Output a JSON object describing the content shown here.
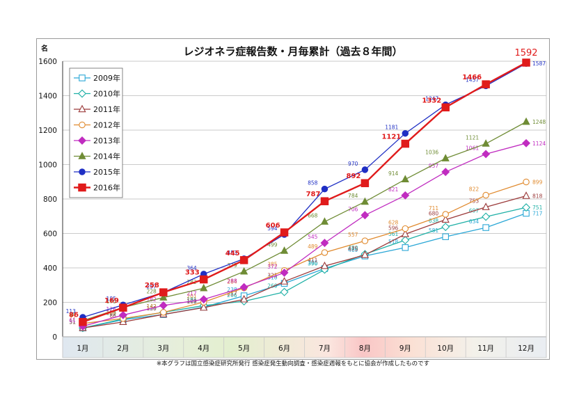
{
  "chart_data": {
    "type": "line",
    "title": "レジオネラ症報告数・月毎累計（過去８年間）",
    "ylabel": "名",
    "ylim": [
      0,
      1600
    ],
    "yticks": [
      0,
      200,
      400,
      600,
      800,
      1000,
      1200,
      1400,
      1600
    ],
    "grid": true,
    "legend_position": "top-left",
    "categories": [
      "1月",
      "2月",
      "3月",
      "4月",
      "5月",
      "6月",
      "7月",
      "8月",
      "9月",
      "10月",
      "11月",
      "12月"
    ],
    "footnote": "※本グラフは国立感染症研究所発行 感染症発生動向調査・感染症週報をもとに協会が作成したものです",
    "series": [
      {
        "name": "2009年",
        "color": "#2aa7d6",
        "marker": "square-open",
        "values": [
          51,
          99,
          129,
          172,
          238,
          310,
          396,
          469,
          518,
          581,
          634,
          717
        ]
      },
      {
        "name": "2010年",
        "color": "#1fb0a6",
        "marker": "diamond-open",
        "values": [
          51,
          103,
          142,
          181,
          206,
          260,
          390,
          480,
          561,
          638,
          697,
          751
        ]
      },
      {
        "name": "2011年",
        "color": "#9b3a3a",
        "marker": "triangle-open",
        "values": [
          51,
          86,
          130,
          169,
          217,
          321,
          411,
          475,
          596,
          680,
          753,
          818
        ]
      },
      {
        "name": "2012年",
        "color": "#e08a2e",
        "marker": "circle-open",
        "values": [
          77,
          106,
          142,
          201,
          284,
          385,
          489,
          557,
          628,
          711,
          822,
          899
        ]
      },
      {
        "name": "2013年",
        "color": "#c02cc0",
        "marker": "diamond-filled",
        "values": [
          61,
          126,
          182,
          217,
          288,
          372,
          545,
          706,
          821,
          957,
          1061,
          1124
        ]
      },
      {
        "name": "2014年",
        "color": "#6f8c35",
        "marker": "triangle-filled",
        "values": [
          94,
          170,
          228,
          282,
          379,
          499,
          668,
          784,
          914,
          1036,
          1121,
          1248
        ]
      },
      {
        "name": "2015年",
        "color": "#1f2fc4",
        "marker": "circle-filled",
        "values": [
          113,
          185,
          257,
          364,
          453,
          594,
          858,
          970,
          1181,
          1347,
          1457,
          1587
        ]
      },
      {
        "name": "2016年",
        "color": "#e01b1b",
        "marker": "square-filled",
        "values": [
          86,
          169,
          258,
          333,
          445,
          606,
          787,
          892,
          1121,
          1332,
          1466,
          1592
        ]
      }
    ]
  }
}
